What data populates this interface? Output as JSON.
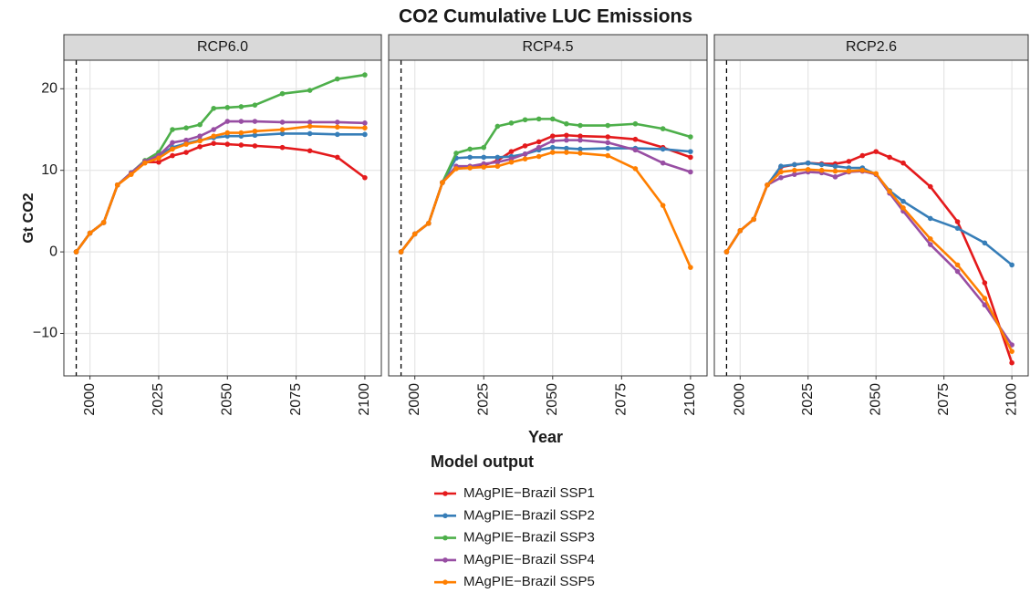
{
  "title": "CO2 Cumulative LUC Emissions",
  "y_label": "Gt CO2",
  "x_label": "Year",
  "legend_title": "Model output",
  "chart_data": [
    {
      "type": "line",
      "title": "RCP6.0",
      "x": [
        1995,
        2000,
        2005,
        2010,
        2015,
        2020,
        2025,
        2030,
        2035,
        2040,
        2045,
        2050,
        2055,
        2060,
        2070,
        2080,
        2090,
        2100
      ],
      "xlim": [
        1990.5,
        2106
      ],
      "xticks": [
        2000,
        2025,
        2050,
        2075,
        2100
      ],
      "ylim": [
        -15.2,
        23.5
      ],
      "yticks": [
        {
          "value": -10,
          "label": "−10"
        },
        0,
        10,
        20
      ],
      "vline": 1995,
      "grid": true,
      "series": [
        {
          "name": "MAgPIE−Brazil SSP1",
          "color": "#e41a1c",
          "values": [
            0,
            2.3,
            3.6,
            8.2,
            9.6,
            11.0,
            11.0,
            11.8,
            12.2,
            12.9,
            13.3,
            13.2,
            13.1,
            13.0,
            12.8,
            12.4,
            11.6,
            9.1
          ]
        },
        {
          "name": "MAgPIE−Brazil SSP2",
          "color": "#377eb8",
          "values": [
            0,
            2.3,
            3.6,
            8.2,
            9.7,
            11.1,
            11.8,
            12.8,
            13.3,
            13.7,
            14.0,
            14.2,
            14.2,
            14.3,
            14.5,
            14.5,
            14.4,
            14.4
          ]
        },
        {
          "name": "MAgPIE−Brazil SSP3",
          "color": "#4daf4a",
          "values": [
            0,
            2.3,
            3.6,
            8.2,
            9.7,
            11.2,
            12.2,
            15.0,
            15.2,
            15.6,
            17.6,
            17.7,
            17.8,
            18.0,
            19.4,
            19.8,
            21.2,
            21.7
          ]
        },
        {
          "name": "MAgPIE−Brazil SSP4",
          "color": "#984ea3",
          "values": [
            0,
            2.3,
            3.6,
            8.2,
            9.7,
            11.1,
            11.8,
            13.4,
            13.7,
            14.2,
            15.0,
            16.0,
            16.0,
            16.0,
            15.9,
            15.9,
            15.9,
            15.8
          ]
        },
        {
          "name": "MAgPIE−Brazil SSP5",
          "color": "#ff7f00",
          "values": [
            0,
            2.3,
            3.6,
            8.2,
            9.5,
            10.9,
            11.5,
            12.6,
            13.2,
            13.6,
            14.2,
            14.6,
            14.6,
            14.8,
            15.0,
            15.4,
            15.3,
            15.2
          ]
        }
      ]
    },
    {
      "type": "line",
      "title": "RCP4.5",
      "x": [
        1995,
        2000,
        2005,
        2010,
        2015,
        2020,
        2025,
        2030,
        2035,
        2040,
        2045,
        2050,
        2055,
        2060,
        2070,
        2080,
        2090,
        2100
      ],
      "xlim": [
        1990.5,
        2106
      ],
      "xticks": [
        2000,
        2025,
        2050,
        2075,
        2100
      ],
      "ylim": [
        -15.2,
        23.5
      ],
      "yticks": [
        {
          "value": -10,
          "label": "−10"
        },
        0,
        10,
        20
      ],
      "vline": 1995,
      "grid": true,
      "series": [
        {
          "name": "MAgPIE−Brazil SSP1",
          "color": "#e41a1c",
          "values": [
            0,
            2.2,
            3.5,
            8.5,
            10.3,
            10.4,
            10.6,
            11.2,
            12.3,
            13.0,
            13.5,
            14.2,
            14.3,
            14.2,
            14.1,
            13.8,
            12.8,
            11.6
          ]
        },
        {
          "name": "MAgPIE−Brazil SSP2",
          "color": "#377eb8",
          "values": [
            0,
            2.2,
            3.5,
            8.5,
            11.5,
            11.6,
            11.6,
            11.6,
            11.7,
            12.0,
            12.5,
            12.8,
            12.7,
            12.6,
            12.7,
            12.7,
            12.6,
            12.3
          ]
        },
        {
          "name": "MAgPIE−Brazil SSP3",
          "color": "#4daf4a",
          "values": [
            0,
            2.2,
            3.5,
            8.5,
            12.1,
            12.6,
            12.8,
            15.4,
            15.8,
            16.2,
            16.3,
            16.3,
            15.7,
            15.5,
            15.5,
            15.7,
            15.1,
            14.1
          ]
        },
        {
          "name": "MAgPIE−Brazil SSP4",
          "color": "#984ea3",
          "values": [
            0,
            2.2,
            3.5,
            8.5,
            10.5,
            10.5,
            10.8,
            11.0,
            11.4,
            12.0,
            12.8,
            13.6,
            13.7,
            13.7,
            13.4,
            12.5,
            10.9,
            9.8
          ]
        },
        {
          "name": "MAgPIE−Brazil SSP5",
          "color": "#ff7f00",
          "values": [
            0,
            2.2,
            3.5,
            8.5,
            10.2,
            10.3,
            10.4,
            10.5,
            11.0,
            11.4,
            11.7,
            12.2,
            12.2,
            12.1,
            11.8,
            10.2,
            5.7,
            -1.9
          ]
        }
      ]
    },
    {
      "type": "line",
      "title": "RCP2.6",
      "x": [
        1995,
        2000,
        2005,
        2010,
        2015,
        2020,
        2025,
        2030,
        2035,
        2040,
        2045,
        2050,
        2055,
        2060,
        2070,
        2080,
        2090,
        2100
      ],
      "xlim": [
        1990.5,
        2106
      ],
      "xticks": [
        2000,
        2025,
        2050,
        2075,
        2100
      ],
      "ylim": [
        -15.2,
        23.5
      ],
      "yticks": [
        {
          "value": -10,
          "label": "−10"
        },
        0,
        10,
        20
      ],
      "vline": 1995,
      "grid": true,
      "series": [
        {
          "name": "MAgPIE−Brazil SSP1",
          "color": "#e41a1c",
          "values": [
            0,
            2.6,
            4.0,
            8.2,
            10.4,
            10.7,
            10.9,
            10.8,
            10.8,
            11.1,
            11.8,
            12.3,
            11.6,
            10.9,
            8.0,
            3.7,
            -3.8,
            -13.6
          ]
        },
        {
          "name": "MAgPIE−Brazil SSP2",
          "color": "#377eb8",
          "values": [
            0,
            2.6,
            4.0,
            8.2,
            10.5,
            10.7,
            10.9,
            10.7,
            10.5,
            10.3,
            10.3,
            9.5,
            7.5,
            6.2,
            4.1,
            2.9,
            1.1,
            -1.6
          ]
        },
        {
          "name": "MAgPIE−Brazil SSP4",
          "color": "#984ea3",
          "values": [
            0,
            2.6,
            4.0,
            8.2,
            9.1,
            9.5,
            9.8,
            9.7,
            9.2,
            9.8,
            9.9,
            9.5,
            7.2,
            5.0,
            0.9,
            -2.4,
            -6.5,
            -11.4
          ]
        },
        {
          "name": "MAgPIE−Brazil SSP5",
          "color": "#ff7f00",
          "values": [
            0,
            2.6,
            4.0,
            8.2,
            9.8,
            10.0,
            10.1,
            10.0,
            9.9,
            9.9,
            10.0,
            9.6,
            7.4,
            5.4,
            1.6,
            -1.6,
            -5.7,
            -12.2
          ]
        }
      ]
    }
  ]
}
